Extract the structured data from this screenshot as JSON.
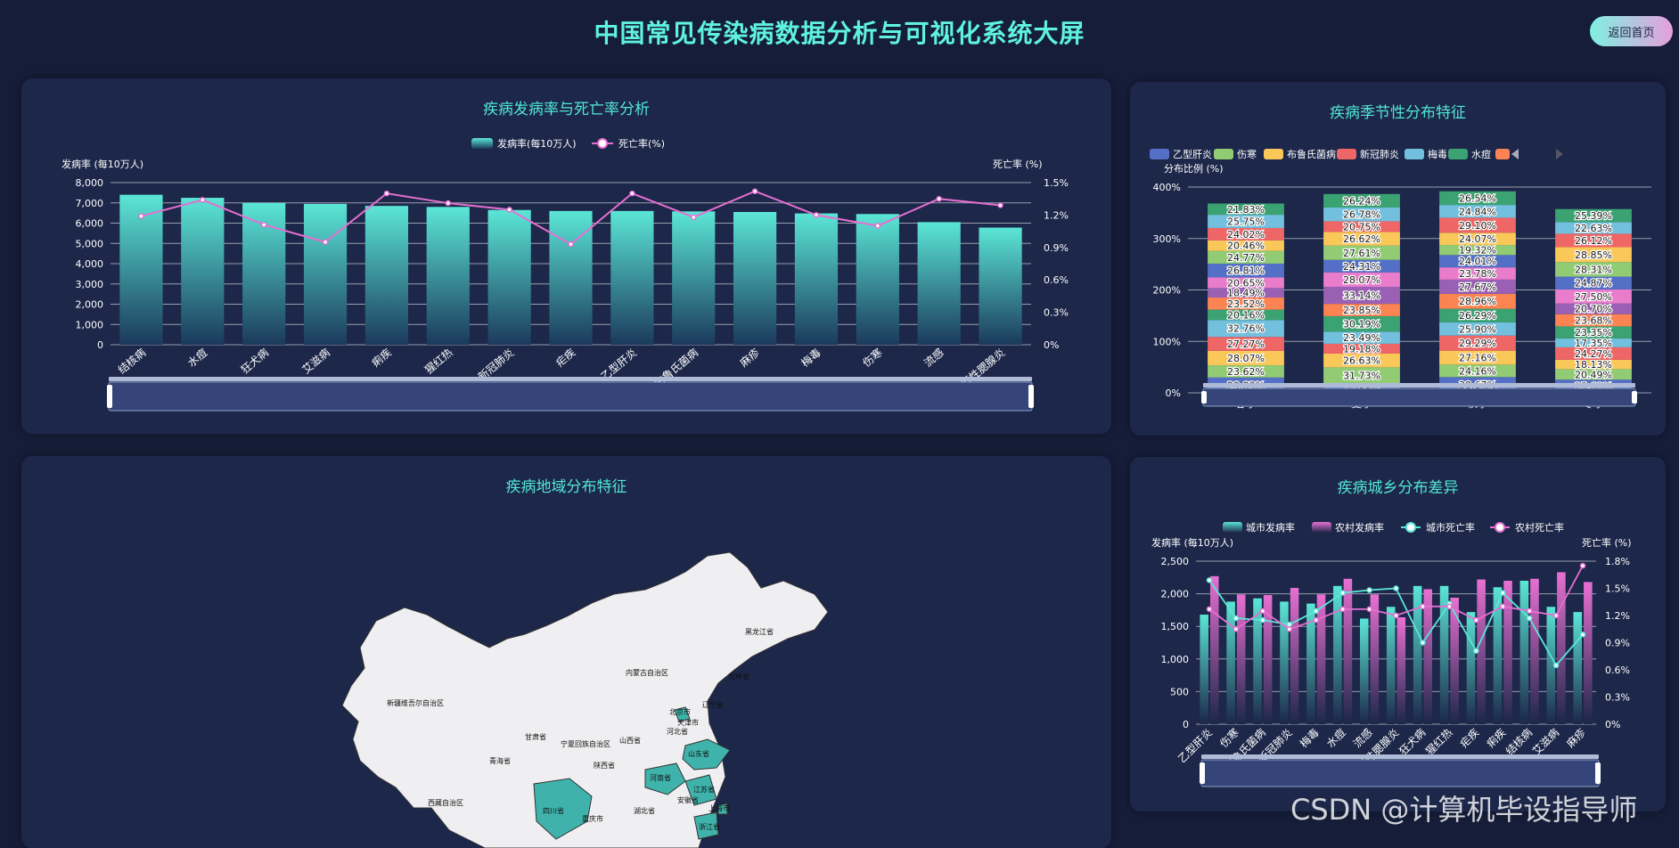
{
  "page": {
    "title": "中国常见传染病数据分析与可视化系统大屏",
    "home_button": "返回首页",
    "watermark": "CSDN @计算机毕设指导师"
  },
  "colors": {
    "bg": "#151d38",
    "panel": "#1c2749",
    "accent": "#52e6d7",
    "pink": "#e66fd0"
  },
  "panels": {
    "p1": "疾病发病率与死亡率分析",
    "p2": "疾病季节性分布特征",
    "p3": "疾病地域分布特征",
    "p4": "疾病城乡分布差异"
  },
  "chart_data": [
    {
      "type": "bar",
      "title": "疾病发病率与死亡率分析",
      "legend": [
        "发病率(每10万人)",
        "死亡率(%)"
      ],
      "ylabel": "发病率 (每10万人)",
      "y2label": "死亡率 (%)",
      "ylim": [
        0,
        8000
      ],
      "y2lim": [
        0,
        1.5
      ],
      "yticks": [
        "0",
        "1,000",
        "2,000",
        "3,000",
        "4,000",
        "5,000",
        "6,000",
        "7,000",
        "8,000"
      ],
      "y2ticks": [
        "0%",
        "0.3%",
        "0.6%",
        "0.9%",
        "1.2%",
        "1.5%"
      ],
      "categories": [
        "结核病",
        "水痘",
        "狂犬病",
        "艾滋病",
        "痢疾",
        "猩红热",
        "新冠肺炎",
        "疟疾",
        "乙型肝炎",
        "布鲁氏菌病",
        "麻疹",
        "梅毒",
        "伤寒",
        "流感",
        "流行性腮腺炎"
      ],
      "series": [
        {
          "name": "发病率(每10万人)",
          "type": "bar",
          "values": [
            7400,
            7250,
            7000,
            6950,
            6850,
            6800,
            6650,
            6600,
            6600,
            6580,
            6550,
            6480,
            6450,
            6050,
            5780
          ]
        },
        {
          "name": "死亡率(%)",
          "type": "line",
          "values": [
            1.19,
            1.34,
            1.11,
            0.95,
            1.4,
            1.31,
            1.25,
            0.93,
            1.4,
            1.18,
            1.42,
            1.2,
            1.1,
            1.35,
            1.29
          ]
        }
      ],
      "grid": true,
      "legend_position": "top"
    },
    {
      "type": "bar",
      "stacked": true,
      "title": "疾病季节性分布特征",
      "legend": [
        "乙型肝炎",
        "伤寒",
        "布鲁氏菌病",
        "新冠肺炎",
        "梅毒",
        "水痘"
      ],
      "ylabel": "分布比例 (%)",
      "ylim": [
        0,
        400
      ],
      "yticks": [
        "0%",
        "100%",
        "200%",
        "300%",
        "400%"
      ],
      "categories": [
        "春季",
        "夏季",
        "秋季",
        "冬季"
      ],
      "series": [
        {
          "values": [
            29.83,
            17.88,
            30.67,
            25.6
          ]
        },
        {
          "values": [
            23.62,
            31.73,
            24.16,
            20.49
          ]
        },
        {
          "values": [
            28.07,
            26.63,
            27.16,
            18.13
          ]
        },
        {
          "values": [
            27.27,
            19.18,
            29.29,
            24.27
          ]
        },
        {
          "values": [
            32.76,
            23.49,
            25.9,
            17.35
          ]
        },
        {
          "values": [
            20.16,
            30.19,
            26.29,
            23.35
          ]
        },
        {
          "values": [
            23.52,
            23.85,
            28.96,
            23.68
          ]
        },
        {
          "values": [
            18.49,
            33.14,
            27.67,
            20.7
          ]
        },
        {
          "values": [
            20.65,
            28.07,
            23.78,
            27.5
          ]
        },
        {
          "values": [
            26.81,
            24.31,
            24.01,
            24.87
          ]
        },
        {
          "values": [
            24.77,
            27.61,
            19.32,
            28.31
          ]
        },
        {
          "values": [
            20.46,
            26.62,
            24.07,
            28.85
          ]
        },
        {
          "values": [
            24.02,
            20.75,
            29.1,
            26.12
          ]
        },
        {
          "values": [
            25.75,
            26.78,
            24.84,
            22.63
          ]
        },
        {
          "values": [
            21.83,
            26.24,
            26.54,
            25.39
          ]
        }
      ],
      "grid": true,
      "legend_position": "top"
    },
    {
      "type": "bar",
      "title": "疾病城乡分布差异",
      "legend": [
        "城市发病率",
        "农村发病率",
        "城市死亡率",
        "农村死亡率"
      ],
      "ylabel": "发病率 (每10万人)",
      "y2label": "死亡率 (%)",
      "ylim": [
        0,
        2500
      ],
      "y2lim": [
        0,
        1.8
      ],
      "yticks": [
        "0",
        "500",
        "1,000",
        "1,500",
        "2,000",
        "2,500"
      ],
      "y2ticks": [
        "0%",
        "0.3%",
        "0.6%",
        "0.9%",
        "1.2%",
        "1.5%",
        "1.8%"
      ],
      "categories": [
        "乙型肝炎",
        "伤寒",
        "布鲁氏菌病",
        "新冠肺炎",
        "梅毒",
        "水痘",
        "流感",
        "流行性腮腺炎",
        "狂犬病",
        "猩红热",
        "疟疾",
        "痢疾",
        "结核病",
        "艾滋病",
        "麻疹"
      ],
      "series": [
        {
          "name": "城市发病率",
          "type": "bar",
          "values": [
            1680,
            1880,
            1930,
            1880,
            1850,
            2120,
            1620,
            1800,
            2120,
            2120,
            1720,
            2100,
            2200,
            1800,
            1720
          ]
        },
        {
          "name": "农村发病率",
          "type": "bar",
          "values": [
            2270,
            1990,
            1980,
            2090,
            1990,
            2230,
            1990,
            1640,
            2070,
            1940,
            2220,
            2200,
            2230,
            2330,
            2180
          ]
        },
        {
          "name": "城市死亡率",
          "type": "line",
          "values": [
            1.59,
            1.17,
            1.15,
            1.1,
            1.25,
            1.45,
            1.48,
            1.5,
            0.9,
            1.33,
            0.81,
            1.45,
            1.17,
            0.65,
            0.99
          ]
        },
        {
          "name": "农村死亡率",
          "type": "line",
          "values": [
            1.27,
            1.05,
            1.25,
            1.05,
            1.15,
            1.27,
            1.27,
            1.2,
            1.3,
            1.3,
            1.15,
            1.3,
            1.25,
            1.2,
            1.75
          ]
        }
      ],
      "grid": true,
      "legend_position": "top"
    }
  ],
  "map": {
    "regions": [
      "黑龙江省",
      "吉林省",
      "辽宁省",
      "内蒙古自治区",
      "新疆维吾尔自治区",
      "西藏自治区",
      "青海省",
      "甘肃省",
      "宁夏回族自治区",
      "陕西省",
      "山西省",
      "北京市",
      "天津市",
      "河北省",
      "山东省",
      "河南省",
      "江苏省",
      "安徽省",
      "上海市",
      "湖北省",
      "重庆市",
      "四川省",
      "浙江省"
    ],
    "highlighted": [
      "山东省",
      "河南省",
      "江苏省",
      "四川省",
      "上海市",
      "浙江省",
      "北京市"
    ]
  }
}
